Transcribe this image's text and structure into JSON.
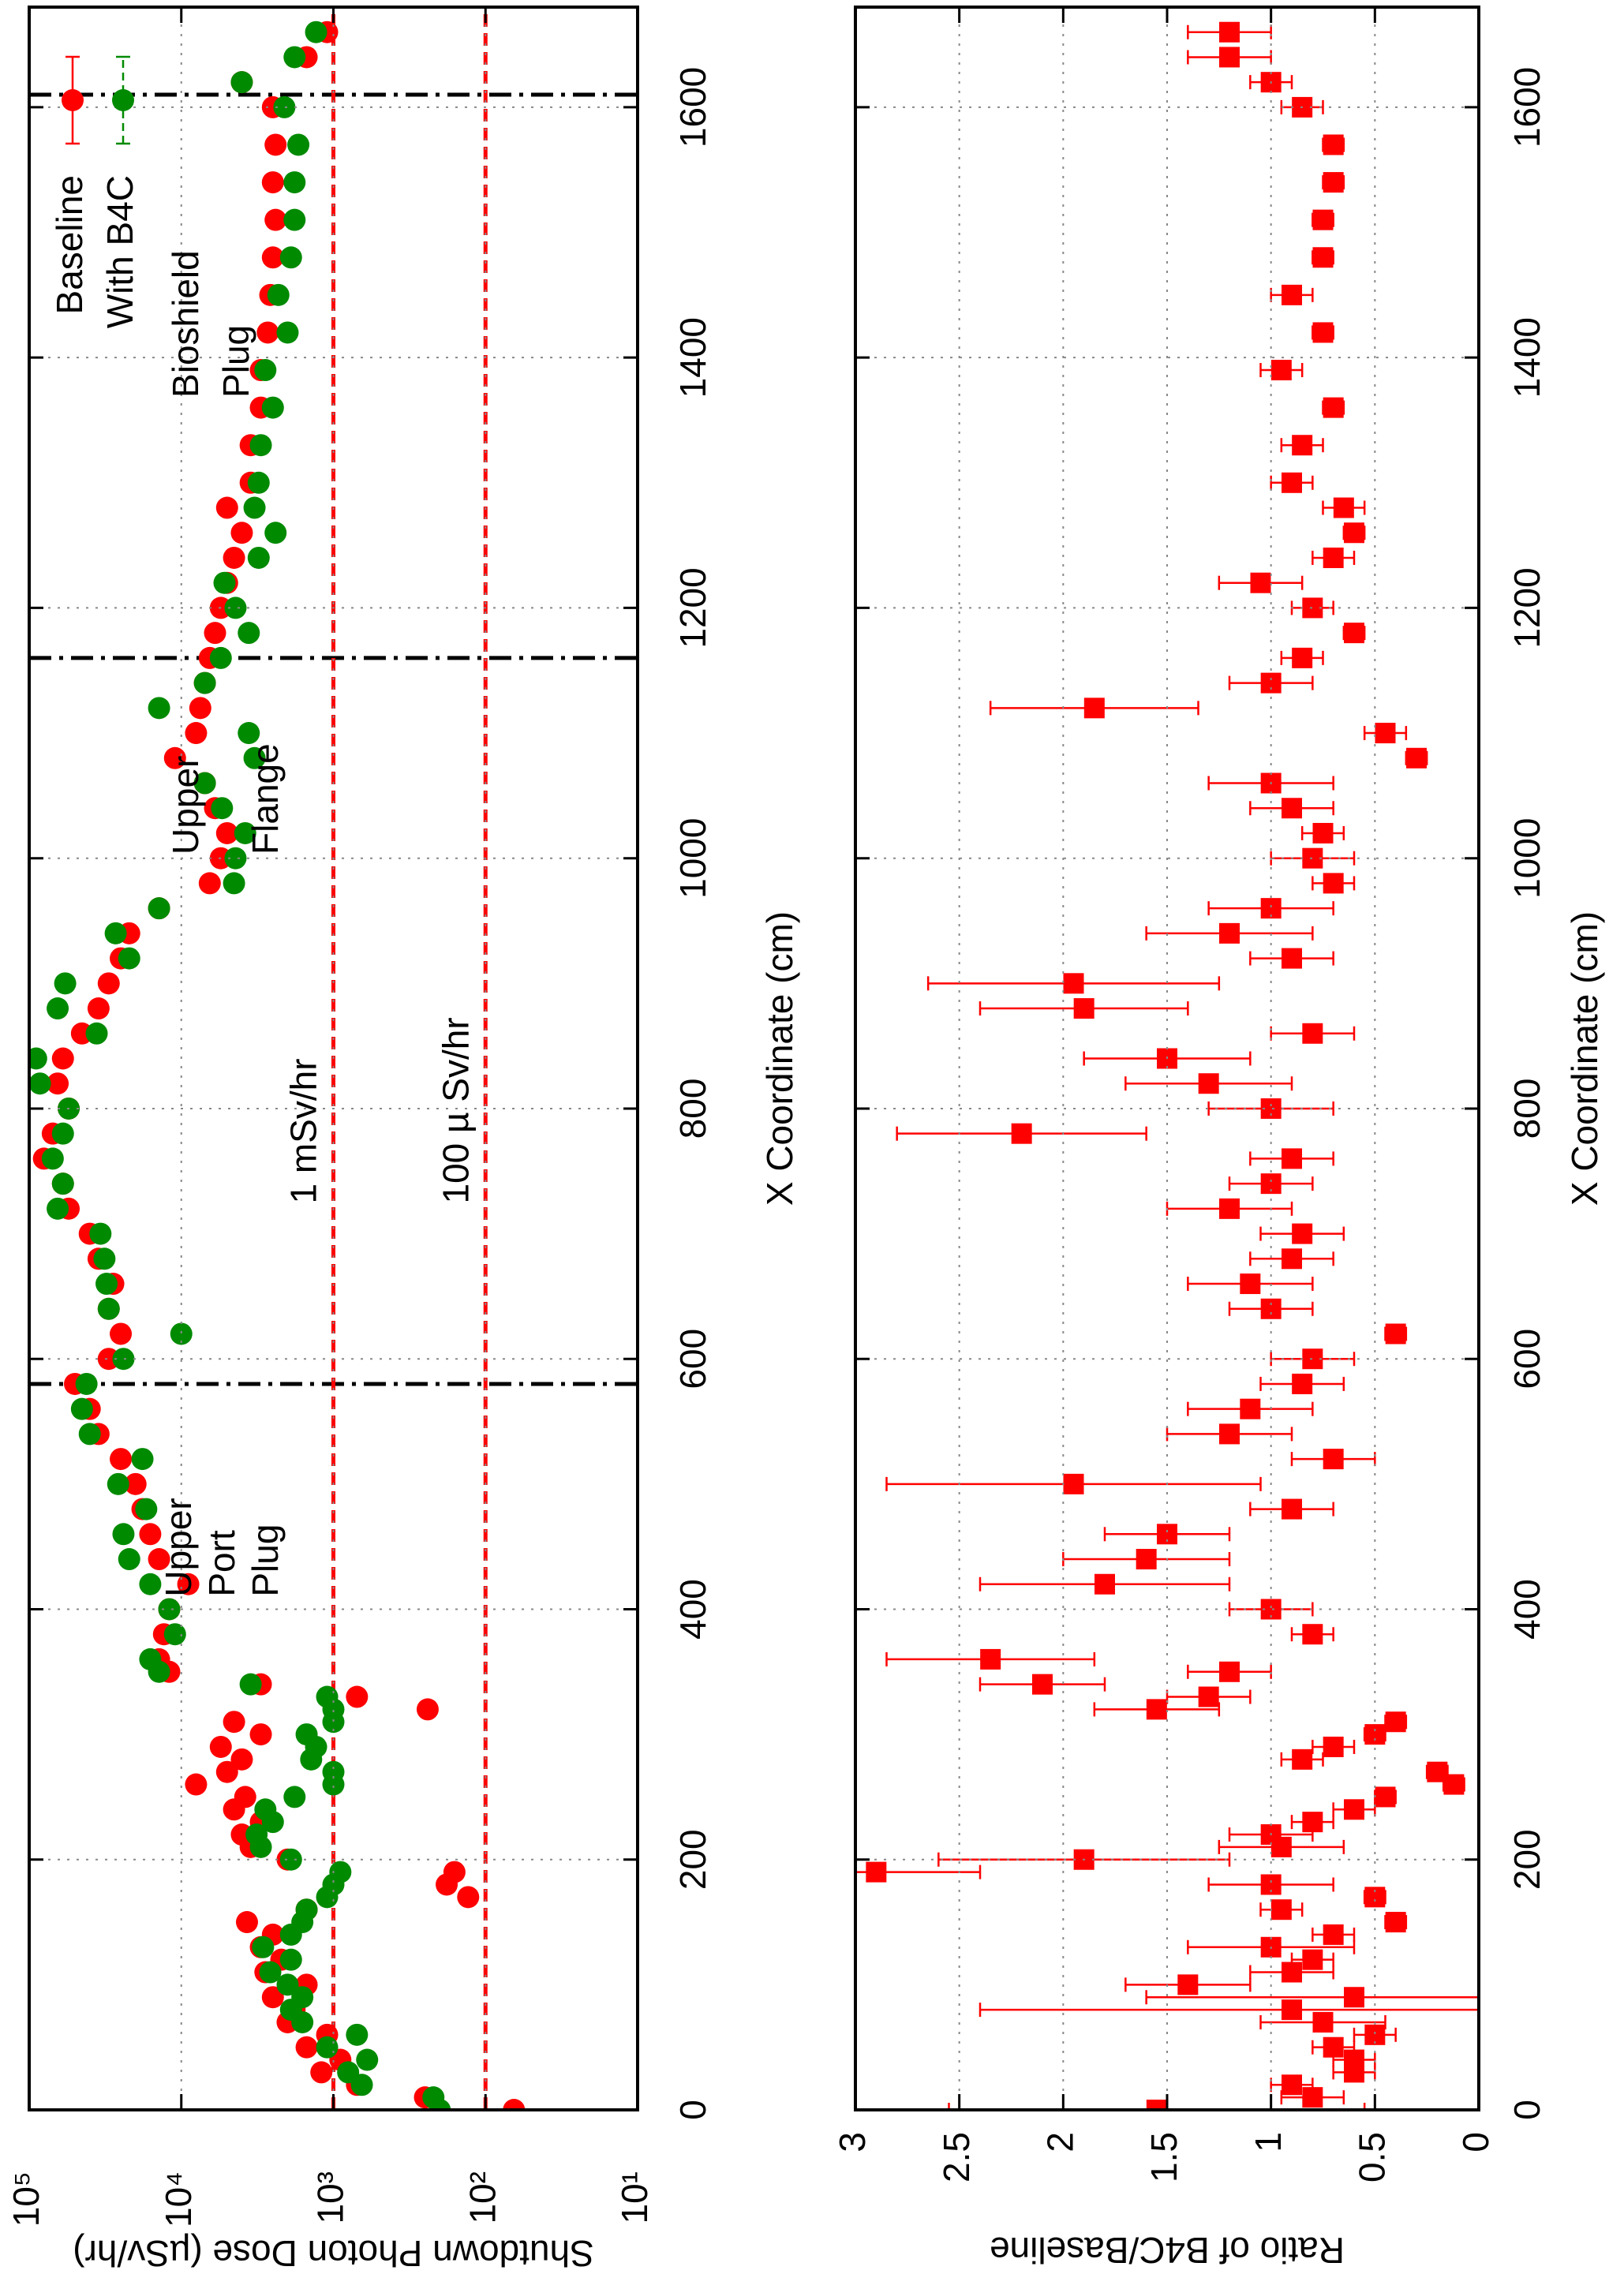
{
  "chart_data": [
    {
      "type": "scatter",
      "ylabel": "Shutdown Photon Dose (µSv/hr)",
      "xlabel": "X Coordinate (cm)",
      "xlim": [
        0,
        1680
      ],
      "xticks": [
        0,
        200,
        400,
        600,
        800,
        1000,
        1200,
        1400,
        1600
      ],
      "ylim": [
        10,
        100000
      ],
      "log_scale": true,
      "yticks": [
        {
          "value": 10,
          "label": "10¹"
        },
        {
          "value": 100,
          "label": "10²"
        },
        {
          "value": 1000,
          "label": "10³"
        },
        {
          "value": 10000,
          "label": "10⁴"
        },
        {
          "value": 100000,
          "label": "10⁵"
        }
      ],
      "grid": true,
      "legend": "top-right",
      "x": [
        0,
        10,
        20,
        30,
        40,
        50,
        60,
        70,
        80,
        90,
        100,
        110,
        120,
        130,
        140,
        150,
        160,
        170,
        180,
        190,
        200,
        210,
        220,
        230,
        240,
        250,
        260,
        270,
        280,
        290,
        300,
        310,
        320,
        330,
        340,
        350,
        360,
        380,
        400,
        420,
        440,
        460,
        480,
        500,
        520,
        540,
        560,
        580,
        600,
        620,
        640,
        660,
        680,
        700,
        720,
        740,
        760,
        780,
        800,
        820,
        840,
        860,
        880,
        900,
        920,
        940,
        960,
        980,
        1000,
        1020,
        1040,
        1060,
        1080,
        1100,
        1120,
        1140,
        1160,
        1180,
        1200,
        1220,
        1240,
        1260,
        1280,
        1300,
        1330,
        1360,
        1390,
        1420,
        1450,
        1480,
        1510,
        1540,
        1570,
        1600,
        1620,
        1640,
        1660
      ],
      "series": [
        {
          "name": "Baseline",
          "color": "#ff0000",
          "values": [
            65,
            250,
            700,
            1200,
            900,
            1500,
            1100,
            2000,
            1800,
            2500,
            1500,
            2800,
            2200,
            3000,
            2500,
            3700,
            1500,
            130,
            180,
            160,
            2000,
            3500,
            4000,
            3000,
            4500,
            3800,
            8000,
            5000,
            4000,
            5500,
            3000,
            4500,
            240,
            700,
            3000,
            12000,
            14000,
            13000,
            12000,
            9000,
            14000,
            16000,
            18000,
            20000,
            25000,
            35000,
            40000,
            50000,
            30000,
            25000,
            30000,
            28000,
            35000,
            40000,
            55000,
            60000,
            80000,
            70000,
            55000,
            65000,
            60000,
            45000,
            35000,
            30000,
            25000,
            22000,
            14000,
            6500,
            5500,
            5000,
            6000,
            7000,
            11000,
            8000,
            7500,
            7000,
            6500,
            6000,
            5500,
            5000,
            4500,
            4000,
            5000,
            3500,
            3500,
            3000,
            3000,
            2700,
            2600,
            2500,
            2400,
            2500,
            2400,
            2500,
            4000,
            1500,
            1100
          ]
        },
        {
          "name": "With B4C",
          "color": "#008a00",
          "values": [
            200,
            220,
            650,
            800,
            600,
            1100,
            700,
            1600,
            1900,
            1600,
            2000,
            2600,
            1900,
            2900,
            1900,
            1600,
            1500,
            1100,
            1000,
            900,
            1900,
            3000,
            3200,
            2500,
            2800,
            1800,
            1000,
            1000,
            1400,
            1300,
            1500,
            1000,
            1000,
            1100,
            3500,
            14000,
            16000,
            11000,
            12000,
            16000,
            22000,
            24000,
            17000,
            26000,
            18000,
            40000,
            45000,
            42000,
            24000,
            10000,
            30000,
            31000,
            32000,
            34000,
            65000,
            60000,
            70000,
            60000,
            55000,
            85000,
            90000,
            36000,
            65000,
            58000,
            22000,
            27000,
            14000,
            4500,
            4400,
            3800,
            5400,
            7000,
            3300,
            3600,
            14000,
            7000,
            5500,
            3600,
            4400,
            5200,
            3100,
            2400,
            3300,
            3100,
            3000,
            2500,
            2800,
            2000,
            2300,
            1900,
            1800,
            1800,
            1700,
            2100,
            4000,
            1800,
            1300
          ]
        }
      ],
      "hlines": [
        {
          "value": 1000,
          "label": "1 mSv/hr"
        },
        {
          "value": 100,
          "label": "100 µ Sv/hr"
        }
      ],
      "vlines": [
        580,
        1160,
        1610
      ],
      "annotations": [
        [
          "Upper",
          "Port",
          "Plug"
        ],
        [
          "Upper",
          "Flange"
        ],
        [
          "Bioshield",
          "Plug"
        ]
      ]
    },
    {
      "type": "errorbar",
      "ylabel": "Ratio of B4C/Baseline",
      "xlabel": "X Coordinate (cm)",
      "xlim": [
        0,
        1680
      ],
      "xticks": [
        0,
        200,
        400,
        600,
        800,
        1000,
        1200,
        1400,
        1600
      ],
      "ylim": [
        0,
        3
      ],
      "yticks": [
        0,
        0.5,
        1,
        1.5,
        2,
        2.5,
        3
      ],
      "grid": true,
      "x": [
        0,
        10,
        20,
        30,
        40,
        50,
        60,
        70,
        80,
        90,
        100,
        110,
        120,
        130,
        140,
        150,
        160,
        170,
        180,
        190,
        200,
        210,
        220,
        230,
        240,
        250,
        260,
        270,
        280,
        290,
        300,
        310,
        320,
        330,
        340,
        350,
        360,
        380,
        400,
        420,
        440,
        460,
        480,
        500,
        520,
        540,
        560,
        580,
        600,
        620,
        640,
        660,
        680,
        700,
        720,
        740,
        760,
        780,
        800,
        820,
        840,
        860,
        880,
        900,
        920,
        940,
        960,
        980,
        1000,
        1020,
        1040,
        1060,
        1080,
        1100,
        1120,
        1140,
        1160,
        1180,
        1200,
        1220,
        1240,
        1260,
        1280,
        1300,
        1330,
        1360,
        1390,
        1420,
        1450,
        1480,
        1510,
        1540,
        1570,
        1600,
        1620,
        1640,
        1660
      ],
      "color": "#ff0000",
      "values": [
        1.55,
        0.8,
        0.9,
        0.6,
        0.6,
        0.7,
        0.5,
        0.75,
        0.9,
        0.6,
        1.4,
        0.9,
        0.8,
        1.0,
        0.7,
        0.4,
        0.95,
        0.5,
        1.0,
        2.9,
        1.9,
        0.95,
        1.0,
        0.8,
        0.6,
        0.45,
        0.12,
        0.2,
        0.85,
        0.7,
        0.5,
        0.4,
        1.55,
        1.3,
        2.1,
        1.2,
        2.35,
        0.8,
        1.0,
        1.8,
        1.6,
        1.5,
        0.9,
        1.95,
        0.7,
        1.2,
        1.1,
        0.85,
        0.8,
        0.4,
        1.0,
        1.1,
        0.9,
        0.85,
        1.2,
        1.0,
        0.9,
        2.2,
        1.0,
        1.3,
        1.5,
        0.8,
        1.9,
        1.95,
        0.9,
        1.2,
        1.0,
        0.7,
        0.8,
        0.75,
        0.9,
        1.0,
        0.3,
        0.45,
        1.85,
        1.0,
        0.85,
        0.6,
        0.8,
        1.05,
        0.7,
        0.6,
        0.65,
        0.9,
        0.85,
        0.7,
        0.95,
        0.75,
        0.9,
        0.75,
        0.75,
        0.7,
        0.7,
        0.85,
        1.0,
        1.2,
        1.2
      ],
      "errors": [
        1.0,
        0.15,
        0.1,
        0.1,
        0.1,
        0.1,
        0.1,
        0.3,
        1.5,
        1.0,
        0.3,
        0.2,
        0.1,
        0.4,
        0.1,
        0.05,
        0.1,
        0.05,
        0.3,
        0.5,
        0.7,
        0.3,
        0.2,
        0.1,
        0.1,
        0.05,
        0.05,
        0.05,
        0.1,
        0.1,
        0.05,
        0.05,
        0.3,
        0.2,
        0.3,
        0.2,
        0.5,
        0.1,
        0.2,
        0.6,
        0.4,
        0.3,
        0.2,
        0.9,
        0.2,
        0.3,
        0.3,
        0.2,
        0.2,
        0.05,
        0.2,
        0.3,
        0.2,
        0.2,
        0.3,
        0.2,
        0.2,
        0.6,
        0.3,
        0.4,
        0.4,
        0.2,
        0.5,
        0.7,
        0.2,
        0.4,
        0.3,
        0.1,
        0.2,
        0.1,
        0.2,
        0.3,
        0.05,
        0.1,
        0.5,
        0.2,
        0.1,
        0.05,
        0.1,
        0.2,
        0.1,
        0.05,
        0.1,
        0.1,
        0.1,
        0.05,
        0.1,
        0.05,
        0.1,
        0.05,
        0.05,
        0.05,
        0.05,
        0.1,
        0.1,
        0.2,
        0.2
      ]
    }
  ]
}
